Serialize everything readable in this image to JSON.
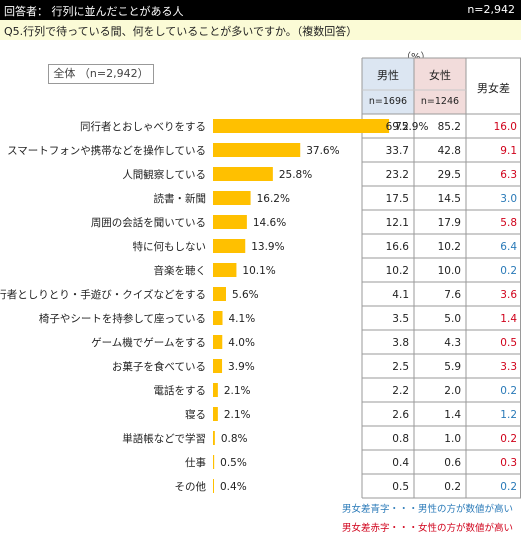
{
  "header": {
    "respondents": "回答者： 行列に並んだことがある人",
    "n_total": "n=2,942"
  },
  "question": "Q5.行列で待っている間、何をしていることが多いですか。（複数回答）",
  "unit": "（%）",
  "total_label": "全体 （n=2,942）",
  "table_headers": {
    "male": "男性",
    "male_n": "n=1696",
    "female": "女性",
    "female_n": "n=1246",
    "diff": "男女差"
  },
  "legend": {
    "blue": "男女差青字・・・男性の方が数値が高い",
    "red": "男女差赤字・・・女性の方が数値が高い"
  },
  "colors": {
    "bar": "#ffc000",
    "male_header_bg": "#dce6f2",
    "female_header_bg": "#f2dcdb",
    "diff_male_higher": "#2a7ab8",
    "diff_female_higher": "#d0021b"
  },
  "chart_data": {
    "type": "bar",
    "orientation": "horizontal",
    "categories": [
      "同行者とおしゃべりをする",
      "スマートフォンや携帯などを操作している",
      "人間観察している",
      "読書・新聞",
      "周囲の会話を聞いている",
      "特に何もしない",
      "音楽を聴く",
      "同行者としりとり・手遊び・クイズなどをする",
      "椅子やシートを持参して座っている",
      "ゲーム機でゲームをする",
      "お菓子を食べている",
      "電話をする",
      "寝る",
      "単語帳などで学習",
      "仕事",
      "その他"
    ],
    "values": [
      75.9,
      37.6,
      25.8,
      16.2,
      14.6,
      13.9,
      10.1,
      5.6,
      4.1,
      4.0,
      3.9,
      2.1,
      2.1,
      0.8,
      0.5,
      0.4
    ],
    "value_labels": [
      "75.9%",
      "37.6%",
      "25.8%",
      "16.2%",
      "14.6%",
      "13.9%",
      "10.1%",
      "5.6%",
      "4.1%",
      "4.0%",
      "3.9%",
      "2.1%",
      "2.1%",
      "0.8%",
      "0.5%",
      "0.4%"
    ],
    "male": [
      "69.2",
      "33.7",
      "23.2",
      "17.5",
      "12.1",
      "16.6",
      "10.2",
      "4.1",
      "3.5",
      "3.8",
      "2.5",
      "2.2",
      "2.6",
      "0.8",
      "0.4",
      "0.5"
    ],
    "female": [
      "85.2",
      "42.8",
      "29.5",
      "14.5",
      "17.9",
      "10.2",
      "10.0",
      "7.6",
      "5.0",
      "4.3",
      "5.9",
      "2.0",
      "1.4",
      "1.0",
      "0.6",
      "0.2"
    ],
    "diff": [
      "16.0",
      "9.1",
      "6.3",
      "3.0",
      "5.8",
      "6.4",
      "0.2",
      "3.6",
      "1.4",
      "0.5",
      "3.3",
      "0.2",
      "1.2",
      "0.2",
      "0.3",
      "0.2"
    ],
    "diff_higher": [
      "female",
      "female",
      "female",
      "male",
      "female",
      "male",
      "male",
      "female",
      "female",
      "female",
      "female",
      "male",
      "male",
      "female",
      "female",
      "male"
    ],
    "xlim": [
      0,
      100
    ]
  }
}
